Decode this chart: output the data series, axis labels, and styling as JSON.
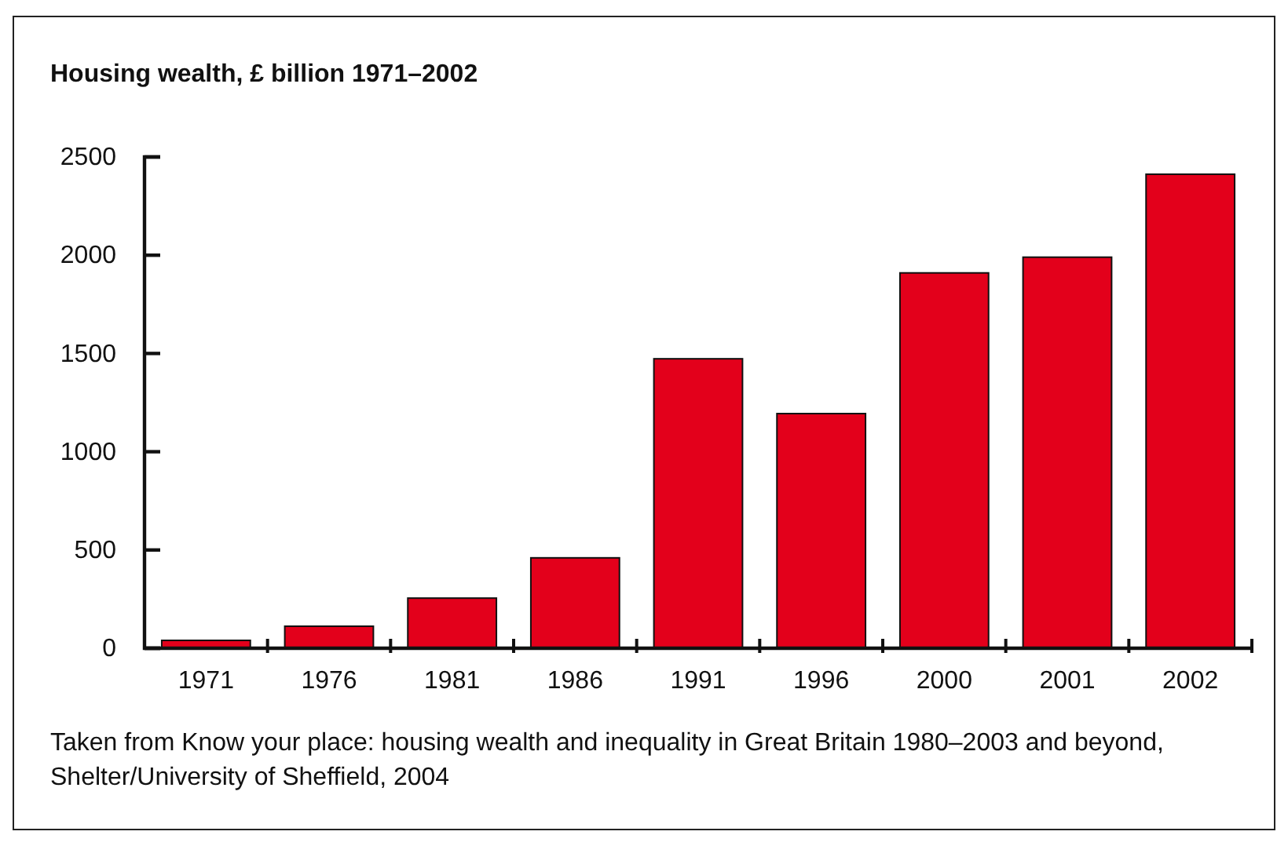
{
  "chart_data": {
    "type": "bar",
    "title": "Housing wealth, £ billion 1971–2002",
    "categories": [
      "1971",
      "1976",
      "1981",
      "1986",
      "1991",
      "1996",
      "2000",
      "2001",
      "2002"
    ],
    "values": [
      40,
      112,
      255,
      460,
      1473,
      1194,
      1910,
      1990,
      2412
    ],
    "color": "#e3001b",
    "ylim": [
      0,
      2500
    ],
    "yticks": [
      0,
      500,
      1000,
      1500,
      2000,
      2500
    ],
    "grid": false,
    "annotations": [
      "Taken from Know your place: housing wealth and inequality in Great Britain 1980–2003 and beyond, Shelter/University of Sheffield, 2004"
    ]
  }
}
